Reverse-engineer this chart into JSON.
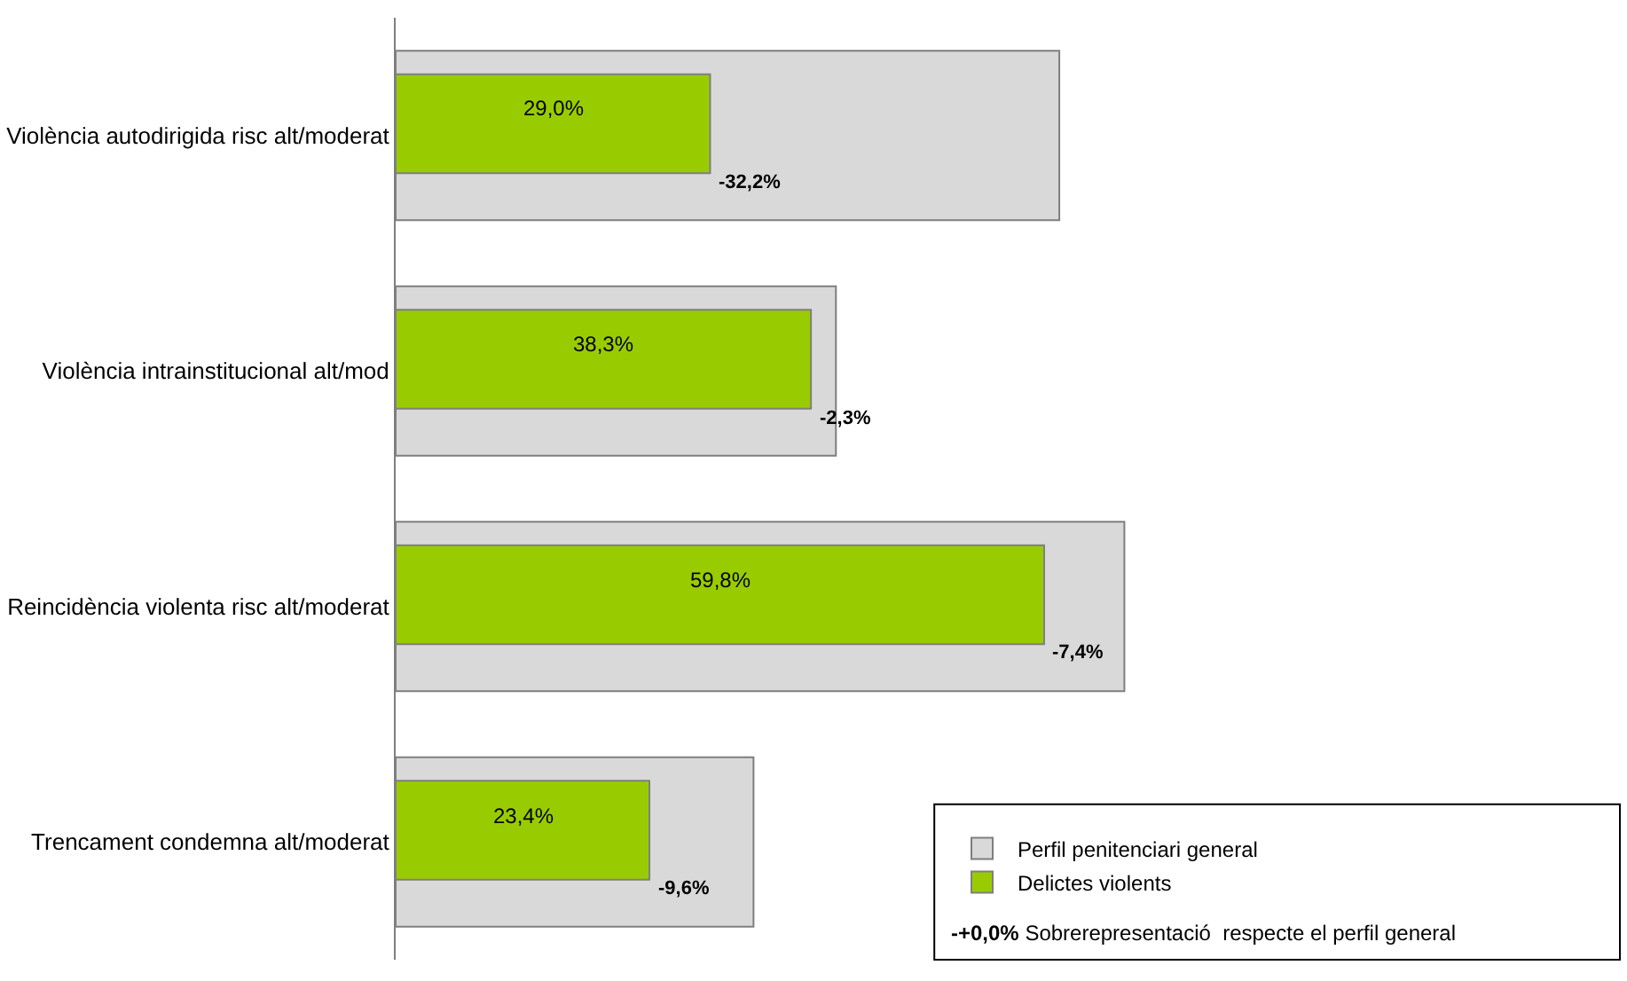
{
  "chart_data": {
    "type": "bar",
    "orientation": "horizontal",
    "categories": [
      "Violència autodirigida risc alt/moderat",
      "Violència intrainstitucional alt/mod",
      "Reincidència violenta risc alt/moderat",
      "Trencament condemna alt/moderat"
    ],
    "series": [
      {
        "name": "Perfil penitenciari general",
        "color": "#d9d9d9",
        "values": [
          61.2,
          40.6,
          67.2,
          33.0
        ]
      },
      {
        "name": "Delictes violents",
        "color": "#99cc00",
        "values": [
          29.0,
          38.3,
          59.8,
          23.4
        ],
        "value_labels": [
          "29,0%",
          "38,3%",
          "59,8%",
          "23,4%"
        ]
      }
    ],
    "annotations": [
      {
        "text": "-32,2%",
        "x": 29.0,
        "y": "Violència autodirigida risc alt/moderat"
      },
      {
        "text": "-2,3%",
        "x": 38.3,
        "y": "Violència intrainstitucional alt/mod"
      },
      {
        "text": "-7,4%",
        "x": 59.8,
        "y": "Reincidència violenta risc alt/moderat"
      },
      {
        "text": "-9,6%",
        "x": 23.4,
        "y": "Trencament condemna alt/moderat"
      },
      "-+0,0%",
      "Sobrerepresentació  respecte el perfil general"
    ],
    "legend": "bottom right"
  }
}
